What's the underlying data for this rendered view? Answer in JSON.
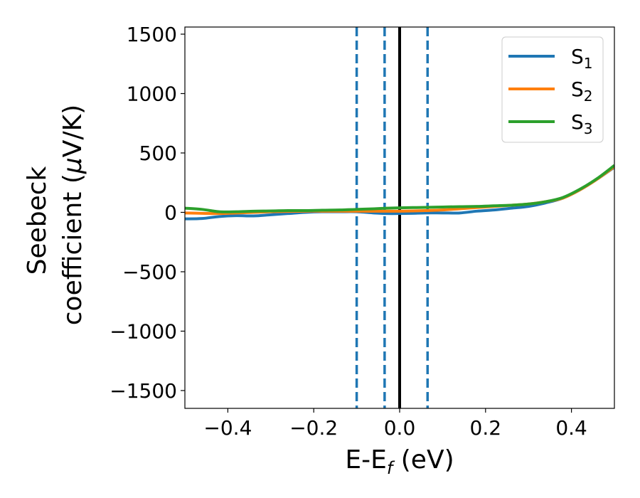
{
  "chart_data": {
    "type": "line",
    "xlabel": {
      "main": "E-E",
      "sub": "f",
      "unit": " (eV)"
    },
    "ylabel": {
      "line1": "Seebeck",
      "line2_prefix": "coefficient  (",
      "mu": "μ",
      "line2_suffix": "V/K)"
    },
    "xlim": [
      -0.5,
      0.5
    ],
    "ylim": [
      -1650,
      1560
    ],
    "xticks": [
      -0.4,
      -0.2,
      0.0,
      0.2,
      0.4
    ],
    "xtick_labels": [
      "−0.4",
      "−0.2",
      "0.0",
      "0.2",
      "0.4"
    ],
    "yticks": [
      1500,
      1000,
      500,
      0,
      -500,
      -1000,
      -1500
    ],
    "ytick_labels": [
      "1500",
      "1000",
      "500",
      "0",
      "−500",
      "−1000",
      "−1500"
    ],
    "grid": false,
    "legend_position": "top-right",
    "series": [
      {
        "name": "S",
        "sub": "1",
        "color": "#1f77b4",
        "x": [
          -0.5,
          -0.46,
          -0.42,
          -0.38,
          -0.34,
          -0.3,
          -0.26,
          -0.22,
          -0.18,
          -0.14,
          -0.1,
          -0.06,
          -0.03,
          0.0,
          0.03,
          0.06,
          0.1,
          0.14,
          0.18,
          0.22,
          0.26,
          0.3,
          0.34,
          0.38,
          0.42,
          0.46,
          0.5
        ],
        "y": [
          -55,
          -52,
          -35,
          -28,
          -30,
          -20,
          -10,
          0,
          5,
          5,
          5,
          -5,
          -10,
          -10,
          -8,
          -5,
          -5,
          -5,
          10,
          20,
          35,
          50,
          80,
          120,
          190,
          280,
          380
        ]
      },
      {
        "name": "S",
        "sub": "2",
        "color": "#ff7f0e",
        "x": [
          -0.5,
          -0.46,
          -0.42,
          -0.38,
          -0.34,
          -0.3,
          -0.26,
          -0.22,
          -0.18,
          -0.14,
          -0.1,
          -0.06,
          -0.03,
          0.0,
          0.03,
          0.06,
          0.1,
          0.14,
          0.18,
          0.22,
          0.26,
          0.3,
          0.34,
          0.38,
          0.42,
          0.46,
          0.5
        ],
        "y": [
          -5,
          -8,
          -10,
          -5,
          0,
          5,
          8,
          10,
          10,
          10,
          10,
          10,
          10,
          10,
          12,
          15,
          20,
          30,
          40,
          50,
          60,
          70,
          90,
          120,
          190,
          280,
          385
        ]
      },
      {
        "name": "S",
        "sub": "3",
        "color": "#2ca02c",
        "x": [
          -0.5,
          -0.46,
          -0.42,
          -0.38,
          -0.34,
          -0.3,
          -0.26,
          -0.22,
          -0.18,
          -0.14,
          -0.1,
          -0.06,
          -0.03,
          0.0,
          0.03,
          0.06,
          0.1,
          0.14,
          0.18,
          0.22,
          0.26,
          0.3,
          0.34,
          0.38,
          0.42,
          0.46,
          0.5
        ],
        "y": [
          35,
          25,
          5,
          5,
          10,
          12,
          15,
          15,
          18,
          20,
          25,
          30,
          35,
          38,
          40,
          42,
          45,
          48,
          50,
          55,
          60,
          70,
          90,
          125,
          195,
          285,
          395
        ]
      }
    ],
    "vlines": [
      {
        "x": -0.1,
        "style": "dashed",
        "color": "#1f77b4"
      },
      {
        "x": -0.035,
        "style": "dashed",
        "color": "#1f77b4"
      },
      {
        "x": 0.0,
        "style": "solid",
        "color": "#000000"
      },
      {
        "x": 0.065,
        "style": "dashed",
        "color": "#1f77b4"
      }
    ]
  }
}
